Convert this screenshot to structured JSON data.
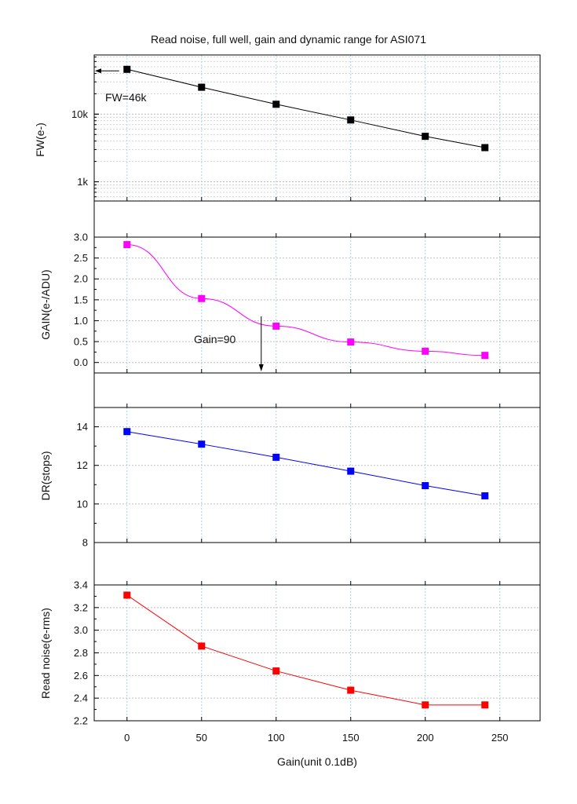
{
  "chart_data": {
    "type": "line",
    "title": "Read noise, full well, gain and dynamic range for ASI071",
    "xlabel": "Gain(unit 0.1dB)",
    "xlim": [
      -22,
      277
    ],
    "x_ticks": [
      0,
      50,
      100,
      150,
      200,
      250
    ],
    "x": [
      0,
      50,
      100,
      150,
      200,
      240
    ],
    "panels": [
      {
        "name": "fw",
        "ylabel": "FW(e-)",
        "scale": "log",
        "ylim": [
          520,
          75000
        ],
        "y_ticks": [
          {
            "value": 1000,
            "label": "1k"
          },
          {
            "value": 10000,
            "label": "10k"
          }
        ],
        "color": "#000000",
        "series": [
          {
            "name": "FW(e-)",
            "values": [
              46000,
              25000,
              14000,
              8200,
              4700,
              3200
            ]
          }
        ],
        "annotation": {
          "text": "FW=46k"
        }
      },
      {
        "name": "gain",
        "ylabel": "GAIN(e-/ADU)",
        "scale": "linear",
        "ylim": [
          -0.25,
          3.0
        ],
        "y_ticks": [
          {
            "value": 0.0,
            "label": "0.0"
          },
          {
            "value": 0.5,
            "label": "0.5"
          },
          {
            "value": 1.0,
            "label": "1.0"
          },
          {
            "value": 1.5,
            "label": "1.5"
          },
          {
            "value": 2.0,
            "label": "2.0"
          },
          {
            "value": 2.5,
            "label": "2.5"
          },
          {
            "value": 3.0,
            "label": "3.0"
          }
        ],
        "color": "#ff00ff",
        "series": [
          {
            "name": "GAIN(e-/ADU)",
            "values": [
              2.82,
              1.53,
              0.87,
              0.49,
              0.27,
              0.17
            ]
          }
        ],
        "annotation": {
          "text": "Gain=90",
          "x": 90
        }
      },
      {
        "name": "dr",
        "ylabel": "DR(stops)",
        "scale": "linear",
        "ylim": [
          8,
          15
        ],
        "y_ticks": [
          {
            "value": 8,
            "label": "8"
          },
          {
            "value": 10,
            "label": "10"
          },
          {
            "value": 12,
            "label": "12"
          },
          {
            "value": 14,
            "label": "14"
          }
        ],
        "color": "#0000ff",
        "series": [
          {
            "name": "DR(stops)",
            "values": [
              13.75,
              13.1,
              12.42,
              11.7,
              10.95,
              10.42
            ]
          }
        ]
      },
      {
        "name": "rn",
        "ylabel": "Read noise(e-rms)",
        "scale": "linear",
        "ylim": [
          2.2,
          3.4
        ],
        "y_ticks": [
          {
            "value": 2.2,
            "label": "2.2"
          },
          {
            "value": 2.4,
            "label": "2.4"
          },
          {
            "value": 2.6,
            "label": "2.6"
          },
          {
            "value": 2.8,
            "label": "2.8"
          },
          {
            "value": 3.0,
            "label": "3.0"
          },
          {
            "value": 3.2,
            "label": "3.2"
          },
          {
            "value": 3.4,
            "label": "3.4"
          }
        ],
        "color": "#ff0000",
        "series": [
          {
            "name": "Read noise(e-rms)",
            "values": [
              3.31,
              2.86,
              2.64,
              2.47,
              2.34,
              2.34
            ]
          }
        ]
      }
    ]
  }
}
